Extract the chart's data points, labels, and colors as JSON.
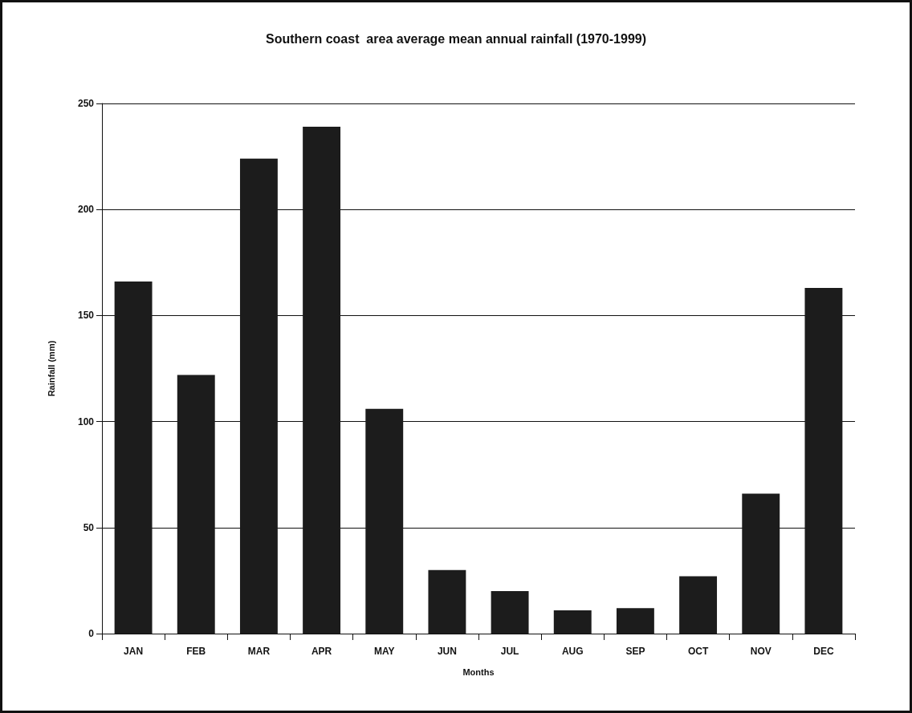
{
  "chart_data": {
    "type": "bar",
    "title": "Southern coast  area average mean annual rainfall (1970-1999)",
    "xlabel": "Months",
    "ylabel": "Rainfall (mm)",
    "categories": [
      "JAN",
      "FEB",
      "MAR",
      "APR",
      "MAY",
      "JUN",
      "JUL",
      "AUG",
      "SEP",
      "OCT",
      "NOV",
      "DEC"
    ],
    "values": [
      166,
      122,
      224,
      239,
      106,
      30,
      20,
      11,
      12,
      27,
      66,
      163
    ],
    "color": "#1c1c1c",
    "ylim": [
      0,
      250
    ],
    "yticks": [
      0,
      50,
      100,
      150,
      200,
      250
    ],
    "grid": "y"
  }
}
